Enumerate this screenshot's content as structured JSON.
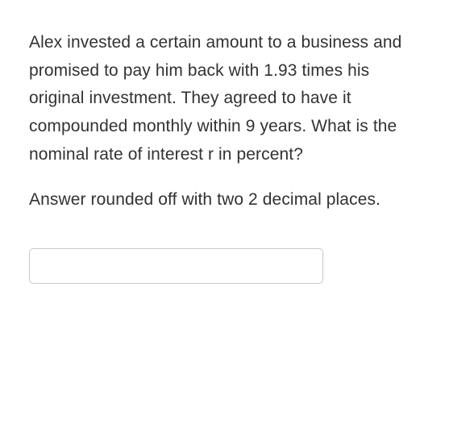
{
  "question": {
    "text": "Alex invested a certain amount to a business and promised to pay him back with 1.93 times his original investment. They agreed to have it compounded monthly within 9 years. What is the nominal rate of interest r in percent?",
    "instruction": "Answer rounded off with two 2 decimal places.",
    "colors": {
      "text": "#323232",
      "background": "#ffffff",
      "input_border": "#c8c8c8"
    },
    "typography": {
      "fontsize": 21,
      "line_height": 1.65
    }
  },
  "answer": {
    "value": "",
    "placeholder": ""
  }
}
